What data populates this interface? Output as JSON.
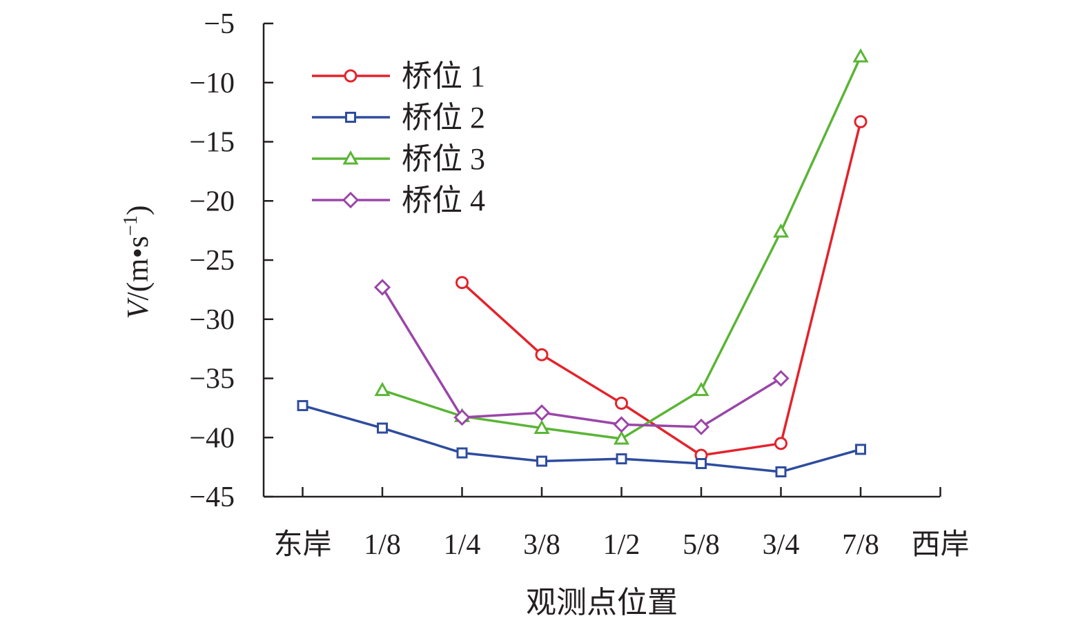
{
  "chart_data": {
    "type": "line",
    "categories": [
      "东岸",
      "1/8",
      "1/4",
      "3/8",
      "1/2",
      "5/8",
      "3/4",
      "7/8",
      "西岸"
    ],
    "xlabel": "观测点位置",
    "ylabel": {
      "italic": "V",
      "rest": "/(m•s",
      "sup": "−1",
      "close": ")"
    },
    "ylim": [
      -45,
      -5
    ],
    "yticks": [
      -5,
      -10,
      -15,
      -20,
      -25,
      -30,
      -35,
      -40,
      -45
    ],
    "ytick_labels": [
      "−5",
      "−10",
      "−15",
      "−20",
      "−25",
      "−30",
      "−35",
      "−40",
      "−45"
    ],
    "legend_position": "top-left",
    "grid": false,
    "series": [
      {
        "name": "桥位 1",
        "color": "#e3232c",
        "marker": "circle",
        "values": [
          null,
          null,
          -26.9,
          -33.0,
          -37.1,
          -41.5,
          -40.5,
          -13.3,
          null
        ]
      },
      {
        "name": "桥位 2",
        "color": "#2e4c9e",
        "marker": "square",
        "values": [
          -37.3,
          -39.2,
          -41.3,
          -42.0,
          -41.8,
          -42.2,
          -42.9,
          -41.0,
          null
        ]
      },
      {
        "name": "桥位 3",
        "color": "#5ab535",
        "marker": "triangle",
        "values": [
          null,
          -36.0,
          -38.2,
          -39.2,
          -40.1,
          -36.0,
          -22.6,
          -7.8,
          null
        ]
      },
      {
        "name": "桥位 4",
        "color": "#9a46a8",
        "marker": "diamond",
        "values": [
          null,
          -27.3,
          -38.3,
          -37.9,
          -38.9,
          -39.1,
          -35.0,
          null,
          null
        ]
      }
    ]
  }
}
